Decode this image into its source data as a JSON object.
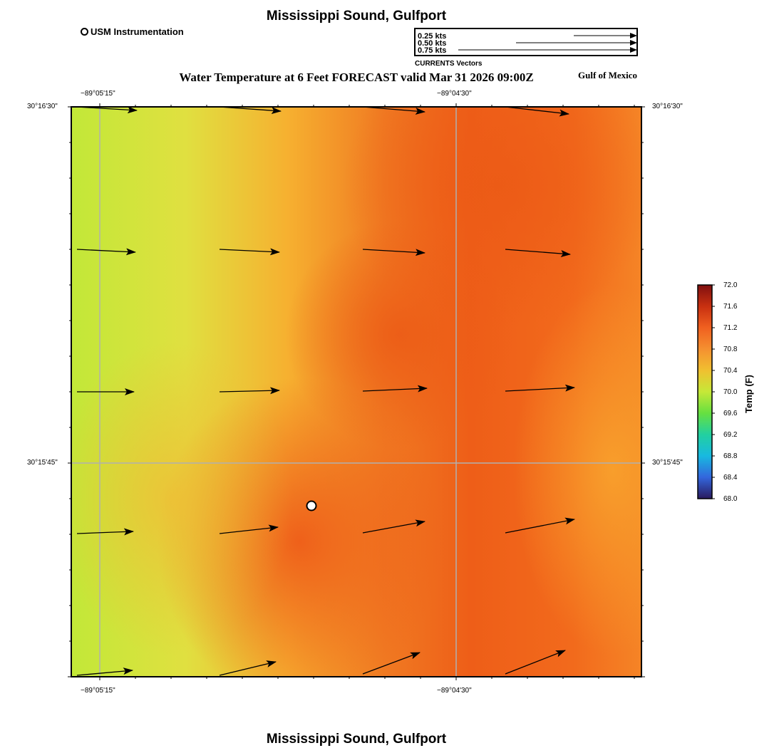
{
  "header": {
    "title": "Mississippi Sound, Gulfport",
    "subtitle": "Water Temperature at 6 Feet FORECAST valid Mar 31 2026 09:00Z",
    "region_label": "Gulf of Mexico",
    "footer_title": "Mississippi Sound, Gulfport"
  },
  "station_legend": {
    "label": "USM Instrumentation",
    "icon": "circle-marker-icon"
  },
  "vector_legend": {
    "caption": "CURRENTS Vectors",
    "items": [
      {
        "label": "0.25 kts",
        "speed": 0.25
      },
      {
        "label": "0.50 kts",
        "speed": 0.5
      },
      {
        "label": "0.75 kts",
        "speed": 0.75
      }
    ]
  },
  "axes": {
    "lon_ticks": [
      {
        "label": "−89°05'15\"",
        "value": -89.0875
      },
      {
        "label": "−89°04'30\"",
        "value": -89.075
      }
    ],
    "lat_ticks": [
      {
        "label": "30°16'30\"",
        "value": 30.275
      },
      {
        "label": "30°15'45\"",
        "value": 30.2625
      }
    ]
  },
  "colorbar": {
    "title": "Temp (F)",
    "min": 68.0,
    "max": 72.0,
    "ticks": [
      "72.0",
      "71.6",
      "71.2",
      "70.8",
      "70.4",
      "70.0",
      "69.6",
      "69.2",
      "68.8",
      "68.4",
      "68.0"
    ],
    "colors": [
      "#2a1a5e",
      "#3366dd",
      "#18b9e0",
      "#22d0a0",
      "#66e040",
      "#c6e838",
      "#f0c030",
      "#f59030",
      "#f06020",
      "#c83010",
      "#801010"
    ]
  },
  "map_colors": {
    "cool": "#c2e838",
    "warm": "#ee5e18",
    "mid": "#f6a22a"
  }
}
